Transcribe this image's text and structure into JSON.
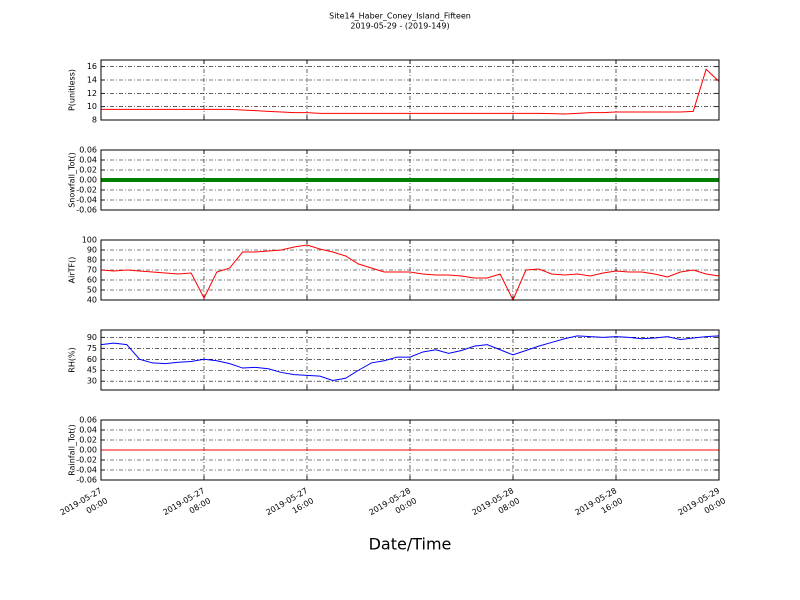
{
  "chart_data": [
    {
      "type": "line",
      "title": "Site14_Haber_Coney_Island_Fifteen",
      "subtitle": "2019-05-29 - (2019-149)",
      "ylabel": "P(unitless)",
      "ylim": [
        8,
        17
      ],
      "yticks": [
        8,
        10,
        12,
        14,
        16
      ],
      "grid": true,
      "xlim": [
        "2019-05-27 00:00",
        "2019-05-29 00:00"
      ],
      "xticks": [
        "2019-05-27 00:00",
        "2019-05-27 08:00",
        "2019-05-27 16:00",
        "2019-05-28 00:00",
        "2019-05-28 08:00",
        "2019-05-28 16:00",
        "2019-05-29 00:00"
      ],
      "x": [
        "2019-05-27 00:00",
        "2019-05-27 01:00",
        "2019-05-27 02:00",
        "2019-05-27 03:00",
        "2019-05-27 04:00",
        "2019-05-27 05:00",
        "2019-05-27 06:00",
        "2019-05-27 07:00",
        "2019-05-27 08:00",
        "2019-05-27 09:00",
        "2019-05-27 10:00",
        "2019-05-27 11:00",
        "2019-05-27 12:00",
        "2019-05-27 13:00",
        "2019-05-27 14:00",
        "2019-05-27 15:00",
        "2019-05-27 16:00",
        "2019-05-27 17:00",
        "2019-05-27 18:00",
        "2019-05-27 19:00",
        "2019-05-27 20:00",
        "2019-05-27 21:00",
        "2019-05-27 22:00",
        "2019-05-27 23:00",
        "2019-05-28 00:00",
        "2019-05-28 01:00",
        "2019-05-28 02:00",
        "2019-05-28 03:00",
        "2019-05-28 04:00",
        "2019-05-28 05:00",
        "2019-05-28 06:00",
        "2019-05-28 07:00",
        "2019-05-28 08:00",
        "2019-05-28 09:00",
        "2019-05-28 10:00",
        "2019-05-28 11:00",
        "2019-05-28 12:00",
        "2019-05-28 13:00",
        "2019-05-28 14:00",
        "2019-05-28 15:00",
        "2019-05-28 16:00",
        "2019-05-28 17:00",
        "2019-05-28 18:00",
        "2019-05-28 19:00",
        "2019-05-28 20:00",
        "2019-05-28 21:00",
        "2019-05-28 22:00",
        "2019-05-28 23:00",
        "2019-05-29 00:00"
      ],
      "series": [
        {
          "color": "#ff0000",
          "values": [
            9.6,
            9.6,
            9.6,
            9.6,
            9.6,
            9.6,
            9.6,
            9.6,
            9.6,
            9.6,
            9.6,
            9.5,
            9.4,
            9.3,
            9.2,
            9.1,
            9.1,
            9.0,
            9.0,
            9.0,
            9.0,
            9.0,
            9.0,
            9.0,
            9.0,
            9.0,
            9.0,
            9.0,
            9.0,
            9.0,
            9.0,
            9.0,
            9.0,
            9.0,
            9.0,
            8.95,
            8.9,
            9.0,
            9.1,
            9.1,
            9.2,
            9.2,
            9.2,
            9.2,
            9.2,
            9.2,
            9.3,
            15.6,
            13.8
          ]
        }
      ]
    },
    {
      "type": "line",
      "ylabel": "Snowfall_Tot()",
      "ylim": [
        -0.06,
        0.06
      ],
      "yticks": [
        -0.06,
        -0.04,
        -0.02,
        {
          "value": 0,
          "label": "0.00"
        },
        0.02,
        0.04,
        0.06
      ],
      "grid": true,
      "xlim": [
        "2019-05-27 00:00",
        "2019-05-29 00:00"
      ],
      "xticks": [
        "2019-05-27 00:00",
        "2019-05-27 08:00",
        "2019-05-27 16:00",
        "2019-05-28 00:00",
        "2019-05-28 08:00",
        "2019-05-28 16:00",
        "2019-05-29 00:00"
      ],
      "x": [
        "2019-05-27 00:00",
        "2019-05-27 01:00",
        "2019-05-27 02:00",
        "2019-05-27 03:00",
        "2019-05-27 04:00",
        "2019-05-27 05:00",
        "2019-05-27 06:00",
        "2019-05-27 07:00",
        "2019-05-27 08:00",
        "2019-05-27 09:00",
        "2019-05-27 10:00",
        "2019-05-27 11:00",
        "2019-05-27 12:00",
        "2019-05-27 13:00",
        "2019-05-27 14:00",
        "2019-05-27 15:00",
        "2019-05-27 16:00",
        "2019-05-27 17:00",
        "2019-05-27 18:00",
        "2019-05-27 19:00",
        "2019-05-27 20:00",
        "2019-05-27 21:00",
        "2019-05-27 22:00",
        "2019-05-27 23:00",
        "2019-05-28 00:00",
        "2019-05-28 01:00",
        "2019-05-28 02:00",
        "2019-05-28 03:00",
        "2019-05-28 04:00",
        "2019-05-28 05:00",
        "2019-05-28 06:00",
        "2019-05-28 07:00",
        "2019-05-28 08:00",
        "2019-05-28 09:00",
        "2019-05-28 10:00",
        "2019-05-28 11:00",
        "2019-05-28 12:00",
        "2019-05-28 13:00",
        "2019-05-28 14:00",
        "2019-05-28 15:00",
        "2019-05-28 16:00",
        "2019-05-28 17:00",
        "2019-05-28 18:00",
        "2019-05-28 19:00",
        "2019-05-28 20:00",
        "2019-05-28 21:00",
        "2019-05-28 22:00",
        "2019-05-28 23:00",
        "2019-05-29 00:00"
      ],
      "series": [
        {
          "color": "#008000",
          "values": [
            0,
            0,
            0,
            0,
            0,
            0,
            0,
            0,
            0,
            0,
            0,
            0,
            0,
            0,
            0,
            0,
            0,
            0,
            0,
            0,
            0,
            0,
            0,
            0,
            0,
            0,
            0,
            0,
            0,
            0,
            0,
            0,
            0,
            0,
            0,
            0,
            0,
            0,
            0,
            0,
            0,
            0,
            0,
            0,
            0,
            0,
            0,
            0,
            0
          ]
        }
      ]
    },
    {
      "type": "line",
      "ylabel": "AirTF()",
      "ylim": [
        40,
        100
      ],
      "yticks": [
        40,
        50,
        60,
        70,
        80,
        90,
        100
      ],
      "grid": true,
      "xlim": [
        "2019-05-27 00:00",
        "2019-05-29 00:00"
      ],
      "xticks": [
        "2019-05-27 00:00",
        "2019-05-27 08:00",
        "2019-05-27 16:00",
        "2019-05-28 00:00",
        "2019-05-28 08:00",
        "2019-05-28 16:00",
        "2019-05-29 00:00"
      ],
      "x": [
        "2019-05-27 00:00",
        "2019-05-27 01:00",
        "2019-05-27 02:00",
        "2019-05-27 03:00",
        "2019-05-27 04:00",
        "2019-05-27 05:00",
        "2019-05-27 06:00",
        "2019-05-27 07:00",
        "2019-05-27 08:00",
        "2019-05-27 09:00",
        "2019-05-27 10:00",
        "2019-05-27 11:00",
        "2019-05-27 12:00",
        "2019-05-27 13:00",
        "2019-05-27 14:00",
        "2019-05-27 15:00",
        "2019-05-27 16:00",
        "2019-05-27 17:00",
        "2019-05-27 18:00",
        "2019-05-27 19:00",
        "2019-05-27 20:00",
        "2019-05-27 21:00",
        "2019-05-27 22:00",
        "2019-05-27 23:00",
        "2019-05-28 00:00",
        "2019-05-28 01:00",
        "2019-05-28 02:00",
        "2019-05-28 03:00",
        "2019-05-28 04:00",
        "2019-05-28 05:00",
        "2019-05-28 06:00",
        "2019-05-28 07:00",
        "2019-05-28 08:00",
        "2019-05-28 09:00",
        "2019-05-28 10:00",
        "2019-05-28 11:00",
        "2019-05-28 12:00",
        "2019-05-28 13:00",
        "2019-05-28 14:00",
        "2019-05-28 15:00",
        "2019-05-28 16:00",
        "2019-05-28 17:00",
        "2019-05-28 18:00",
        "2019-05-28 19:00",
        "2019-05-28 20:00",
        "2019-05-28 21:00",
        "2019-05-28 22:00",
        "2019-05-28 23:00",
        "2019-05-29 00:00"
      ],
      "series": [
        {
          "color": "#ff0000",
          "values": [
            70,
            69,
            70,
            69,
            68,
            67,
            66,
            67,
            42,
            68,
            72,
            88,
            88,
            89,
            90,
            93,
            95,
            91,
            88,
            84,
            76,
            72,
            68,
            68,
            68,
            66,
            65,
            65,
            64,
            62,
            62,
            66,
            40,
            70,
            71,
            66,
            65,
            66,
            64,
            67,
            69,
            68,
            68,
            66,
            63,
            68,
            70,
            66,
            64
          ]
        }
      ]
    },
    {
      "type": "line",
      "ylabel": "RH(%)",
      "ylim": [
        18,
        100
      ],
      "yticks": [
        30,
        45,
        60,
        75,
        90
      ],
      "grid": true,
      "xlim": [
        "2019-05-27 00:00",
        "2019-05-29 00:00"
      ],
      "xticks": [
        "2019-05-27 00:00",
        "2019-05-27 08:00",
        "2019-05-27 16:00",
        "2019-05-28 00:00",
        "2019-05-28 08:00",
        "2019-05-28 16:00",
        "2019-05-29 00:00"
      ],
      "x": [
        "2019-05-27 00:00",
        "2019-05-27 01:00",
        "2019-05-27 02:00",
        "2019-05-27 03:00",
        "2019-05-27 04:00",
        "2019-05-27 05:00",
        "2019-05-27 06:00",
        "2019-05-27 07:00",
        "2019-05-27 08:00",
        "2019-05-27 09:00",
        "2019-05-27 10:00",
        "2019-05-27 11:00",
        "2019-05-27 12:00",
        "2019-05-27 13:00",
        "2019-05-27 14:00",
        "2019-05-27 15:00",
        "2019-05-27 16:00",
        "2019-05-27 17:00",
        "2019-05-27 18:00",
        "2019-05-27 19:00",
        "2019-05-27 20:00",
        "2019-05-27 21:00",
        "2019-05-27 22:00",
        "2019-05-27 23:00",
        "2019-05-28 00:00",
        "2019-05-28 01:00",
        "2019-05-28 02:00",
        "2019-05-28 03:00",
        "2019-05-28 04:00",
        "2019-05-28 05:00",
        "2019-05-28 06:00",
        "2019-05-28 07:00",
        "2019-05-28 08:00",
        "2019-05-28 09:00",
        "2019-05-28 10:00",
        "2019-05-28 11:00",
        "2019-05-28 12:00",
        "2019-05-28 13:00",
        "2019-05-28 14:00",
        "2019-05-28 15:00",
        "2019-05-28 16:00",
        "2019-05-28 17:00",
        "2019-05-28 18:00",
        "2019-05-28 19:00",
        "2019-05-28 20:00",
        "2019-05-28 21:00",
        "2019-05-28 22:00",
        "2019-05-28 23:00",
        "2019-05-29 00:00"
      ],
      "series": [
        {
          "color": "#0000ff",
          "values": [
            80,
            82,
            80,
            60,
            55,
            54,
            56,
            57,
            60,
            58,
            54,
            48,
            49,
            47,
            42,
            39,
            38,
            37,
            31,
            34,
            45,
            55,
            58,
            63,
            63,
            70,
            73,
            68,
            72,
            78,
            80,
            73,
            66,
            72,
            78,
            83,
            88,
            92,
            91,
            90,
            91,
            90,
            88,
            89,
            91,
            87,
            89,
            91,
            92
          ]
        }
      ]
    },
    {
      "type": "line",
      "ylabel": "Rainfall_Tot()",
      "xlabel": "Date/Time",
      "ylim": [
        -0.06,
        0.06
      ],
      "yticks": [
        -0.06,
        -0.04,
        -0.02,
        {
          "value": 0,
          "label": "0.00"
        },
        0.02,
        0.04,
        0.06
      ],
      "grid": true,
      "xlim": [
        "2019-05-27 00:00",
        "2019-05-29 00:00"
      ],
      "xticks": [
        {
          "value": "2019-05-27 00:00",
          "label": [
            "2019-05-27",
            "00:00"
          ]
        },
        {
          "value": "2019-05-27 08:00",
          "label": [
            "2019-05-27",
            "08:00"
          ]
        },
        {
          "value": "2019-05-27 16:00",
          "label": [
            "2019-05-27",
            "16:00"
          ]
        },
        {
          "value": "2019-05-28 00:00",
          "label": [
            "2019-05-28",
            "00:00"
          ]
        },
        {
          "value": "2019-05-28 08:00",
          "label": [
            "2019-05-28",
            "08:00"
          ]
        },
        {
          "value": "2019-05-28 16:00",
          "label": [
            "2019-05-28",
            "16:00"
          ]
        },
        {
          "value": "2019-05-29 00:00",
          "label": [
            "2019-05-29",
            "00:00"
          ]
        }
      ],
      "x": [
        "2019-05-27 00:00",
        "2019-05-27 01:00",
        "2019-05-27 02:00",
        "2019-05-27 03:00",
        "2019-05-27 04:00",
        "2019-05-27 05:00",
        "2019-05-27 06:00",
        "2019-05-27 07:00",
        "2019-05-27 08:00",
        "2019-05-27 09:00",
        "2019-05-27 10:00",
        "2019-05-27 11:00",
        "2019-05-27 12:00",
        "2019-05-27 13:00",
        "2019-05-27 14:00",
        "2019-05-27 15:00",
        "2019-05-27 16:00",
        "2019-05-27 17:00",
        "2019-05-27 18:00",
        "2019-05-27 19:00",
        "2019-05-27 20:00",
        "2019-05-27 21:00",
        "2019-05-27 22:00",
        "2019-05-27 23:00",
        "2019-05-28 00:00",
        "2019-05-28 01:00",
        "2019-05-28 02:00",
        "2019-05-28 03:00",
        "2019-05-28 04:00",
        "2019-05-28 05:00",
        "2019-05-28 06:00",
        "2019-05-28 07:00",
        "2019-05-28 08:00",
        "2019-05-28 09:00",
        "2019-05-28 10:00",
        "2019-05-28 11:00",
        "2019-05-28 12:00",
        "2019-05-28 13:00",
        "2019-05-28 14:00",
        "2019-05-28 15:00",
        "2019-05-28 16:00",
        "2019-05-28 17:00",
        "2019-05-28 18:00",
        "2019-05-28 19:00",
        "2019-05-28 20:00",
        "2019-05-28 21:00",
        "2019-05-28 22:00",
        "2019-05-28 23:00",
        "2019-05-29 00:00"
      ],
      "series": [
        {
          "color": "#ff0000",
          "values": [
            0,
            0,
            0,
            0,
            0,
            0,
            0,
            0,
            0,
            0,
            0,
            0,
            0,
            0,
            0,
            0,
            0,
            0,
            0,
            0,
            0,
            0,
            0,
            0,
            0,
            0,
            0,
            0,
            0,
            0,
            0,
            0,
            0,
            0,
            0,
            0,
            0,
            0,
            0,
            0,
            0,
            0,
            0,
            0,
            0,
            0,
            0,
            0,
            0
          ]
        }
      ]
    }
  ]
}
